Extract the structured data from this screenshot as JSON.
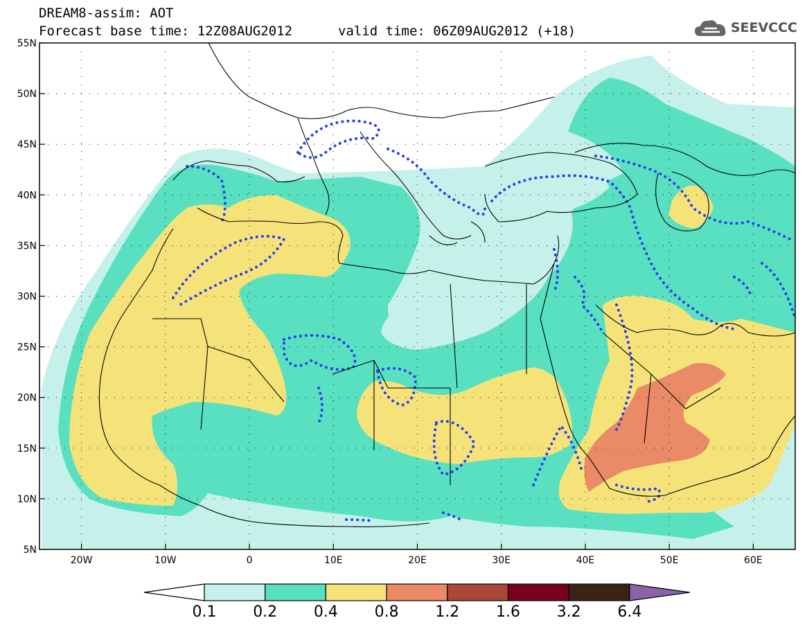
{
  "header": {
    "title": "DREAM8-assim: AOT",
    "base_time": "Forecast base time: 12Z08AUG2012",
    "valid_time": "valid time: 06Z09AUG2012 (+18)"
  },
  "logo": {
    "text": "SEEVCCC",
    "icon": "cloud-icon"
  },
  "map": {
    "lon_range": [
      -25,
      65
    ],
    "lat_range": [
      5,
      55
    ],
    "lon_ticks": [
      {
        "value": -20,
        "label": "20W"
      },
      {
        "value": -10,
        "label": "10W"
      },
      {
        "value": 0,
        "label": "0"
      },
      {
        "value": 10,
        "label": "10E"
      },
      {
        "value": 20,
        "label": "20E"
      },
      {
        "value": 30,
        "label": "30E"
      },
      {
        "value": 40,
        "label": "40E"
      },
      {
        "value": 50,
        "label": "50E"
      },
      {
        "value": 60,
        "label": "60E"
      }
    ],
    "lat_ticks": [
      {
        "value": 55,
        "label": "55N"
      },
      {
        "value": 50,
        "label": "50N"
      },
      {
        "value": 45,
        "label": "45N"
      },
      {
        "value": 40,
        "label": "40N"
      },
      {
        "value": 35,
        "label": "35N"
      },
      {
        "value": 30,
        "label": "30N"
      },
      {
        "value": 25,
        "label": "25N"
      },
      {
        "value": 20,
        "label": "20N"
      },
      {
        "value": 15,
        "label": "15N"
      },
      {
        "value": 10,
        "label": "10N"
      },
      {
        "value": 5,
        "label": "5N"
      }
    ],
    "grid": "dotted",
    "contour_levels": [
      "0.1",
      "0.2",
      "0.4",
      "0.8",
      "1.2",
      "1.6",
      "3.2",
      "6.4"
    ],
    "colors": {
      "lvl1": "#c6f1ea",
      "lvl2": "#58e0c0",
      "lvl3": "#f5e37a",
      "lvl4": "#ea8a66",
      "lvl5": "#a84838",
      "lvl6": "#7a0020",
      "lvl7": "#3a2314",
      "lvl8": "#8a64aa",
      "coast": "#000000",
      "dots": "#2a3cf0"
    }
  }
}
